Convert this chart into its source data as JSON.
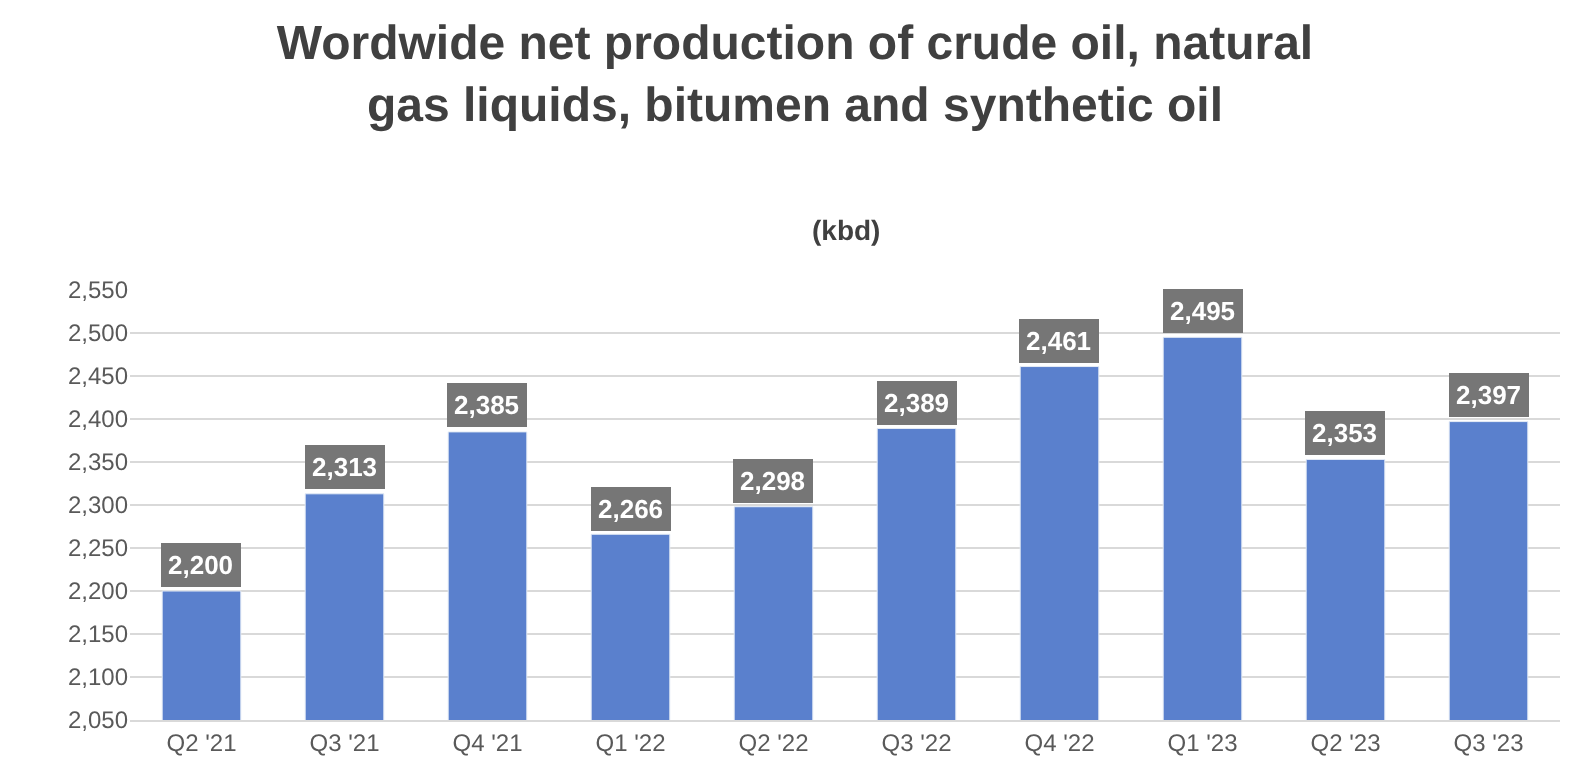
{
  "chart_data": {
    "type": "bar",
    "title": "Wordwide net production of crude oil, natural gas liquids, bitumen and synthetic oil",
    "subtitle": "(kbd)",
    "categories": [
      "Q2 '21",
      "Q3 '21",
      "Q4 '21",
      "Q1 '22",
      "Q2 '22",
      "Q3 '22",
      "Q4 '22",
      "Q1 '23",
      "Q2 '23",
      "Q3 '23"
    ],
    "values": [
      2200,
      2313,
      2385,
      2266,
      2298,
      2389,
      2461,
      2495,
      2353,
      2397
    ],
    "value_labels": [
      "2,200",
      "2,313",
      "2,385",
      "2,266",
      "2,298",
      "2,389",
      "2,461",
      "2,495",
      "2,353",
      "2,397"
    ],
    "color": "#5a80cd",
    "ylim": [
      2050,
      2550
    ],
    "yticks": [
      {
        "value": 2050,
        "label": "2,050"
      },
      {
        "value": 2100,
        "label": "2,100"
      },
      {
        "value": 2150,
        "label": "2,150"
      },
      {
        "value": 2200,
        "label": "2,200"
      },
      {
        "value": 2250,
        "label": "2,250"
      },
      {
        "value": 2300,
        "label": "2,300"
      },
      {
        "value": 2350,
        "label": "2,350"
      },
      {
        "value": 2400,
        "label": "2,400"
      },
      {
        "value": 2450,
        "label": "2,450"
      },
      {
        "value": 2500,
        "label": "2,500"
      },
      {
        "value": 2550,
        "label": "2,550"
      }
    ],
    "grid": "y"
  }
}
